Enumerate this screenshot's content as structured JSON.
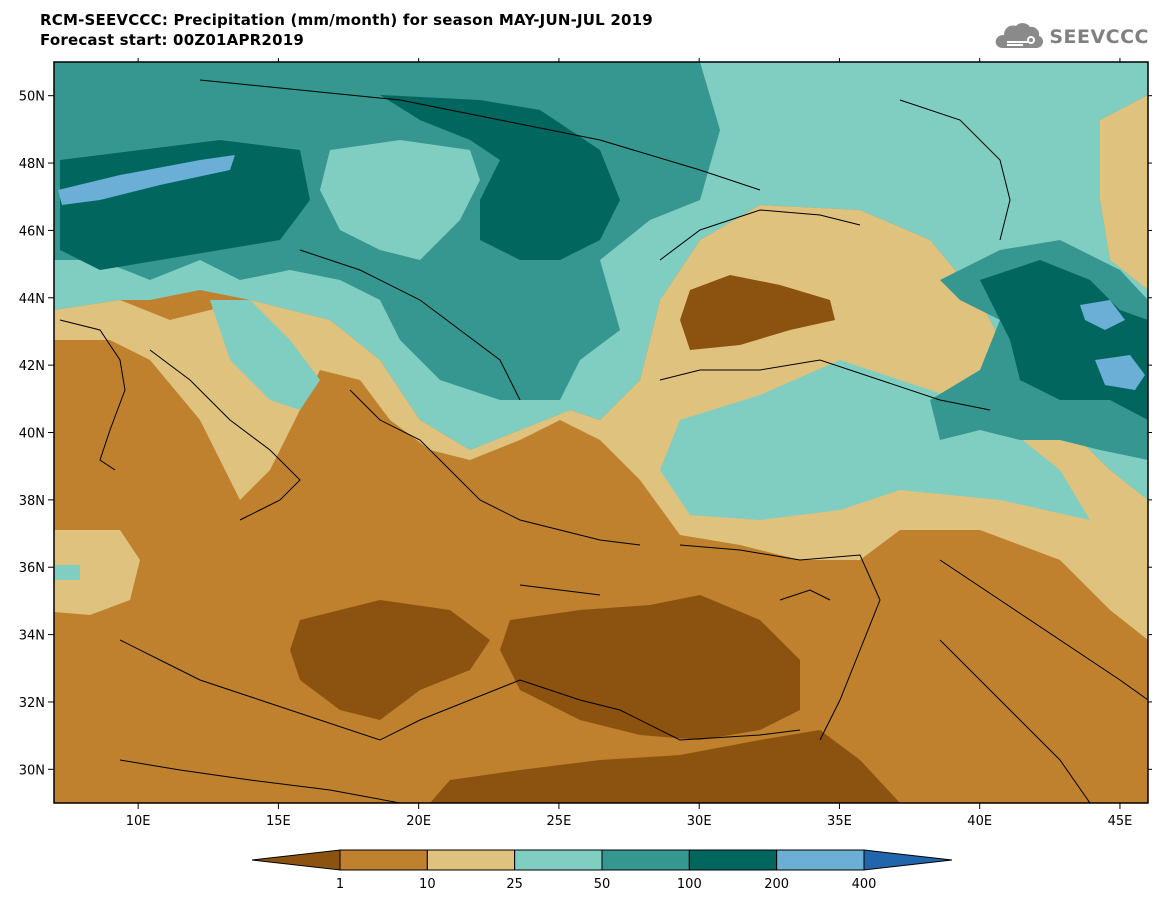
{
  "title": {
    "line1": "RCM-SEEVCCC: Precipitation (mm/month) for season MAY-JUN-JUL 2019",
    "line2": "Forecast start: 00Z01APR2019"
  },
  "logo": {
    "text": "SEEVCCC",
    "icon": "cloud-icon"
  },
  "map": {
    "lon_range": [
      7,
      46
    ],
    "lat_range": [
      29,
      51
    ],
    "lat_ticks": [
      {
        "value": 30,
        "label": "30N"
      },
      {
        "value": 32,
        "label": "32N"
      },
      {
        "value": 34,
        "label": "34N"
      },
      {
        "value": 36,
        "label": "36N"
      },
      {
        "value": 38,
        "label": "38N"
      },
      {
        "value": 40,
        "label": "40N"
      },
      {
        "value": 42,
        "label": "42N"
      },
      {
        "value": 44,
        "label": "44N"
      },
      {
        "value": 46,
        "label": "46N"
      },
      {
        "value": 48,
        "label": "48N"
      },
      {
        "value": 50,
        "label": "50N"
      }
    ],
    "lon_ticks": [
      {
        "value": 10,
        "label": "10E"
      },
      {
        "value": 15,
        "label": "15E"
      },
      {
        "value": 20,
        "label": "20E"
      },
      {
        "value": 25,
        "label": "25E"
      },
      {
        "value": 30,
        "label": "30E"
      },
      {
        "value": 35,
        "label": "35E"
      },
      {
        "value": 40,
        "label": "40E"
      },
      {
        "value": 45,
        "label": "45E"
      }
    ]
  },
  "colorbar": {
    "levels": [
      "1",
      "10",
      "25",
      "50",
      "100",
      "200",
      "400"
    ],
    "colors": [
      "#8c520f",
      "#bf812d",
      "#dfc27d",
      "#80cdc1",
      "#35978f",
      "#01665e",
      "#6baed6",
      "#2166ac"
    ]
  }
}
